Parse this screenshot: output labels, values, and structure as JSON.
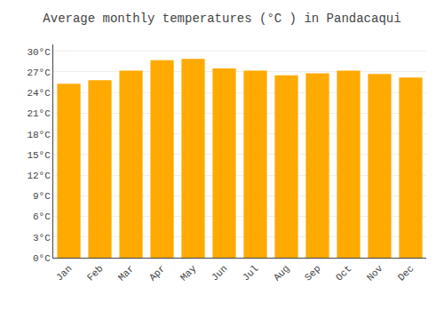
{
  "chart_data": {
    "type": "bar",
    "title": "Average monthly temperatures (°C ) in Pandacaqui",
    "categories": [
      "Jan",
      "Feb",
      "Mar",
      "Apr",
      "May",
      "Jun",
      "Jul",
      "Aug",
      "Sep",
      "Oct",
      "Nov",
      "Dec"
    ],
    "values": [
      25.3,
      25.8,
      27.2,
      28.7,
      28.9,
      27.5,
      27.2,
      26.5,
      26.8,
      27.2,
      26.7,
      26.2
    ],
    "color": "#FFAA00",
    "ylim": [
      0,
      31
    ],
    "yticks": [
      {
        "value": 0,
        "label": "0°C"
      },
      {
        "value": 3,
        "label": "3°C"
      },
      {
        "value": 6,
        "label": "6°C"
      },
      {
        "value": 9,
        "label": "9°C"
      },
      {
        "value": 12,
        "label": "12°C"
      },
      {
        "value": 15,
        "label": "15°C"
      },
      {
        "value": 18,
        "label": "18°C"
      },
      {
        "value": 21,
        "label": "21°C"
      },
      {
        "value": 24,
        "label": "24°C"
      },
      {
        "value": 27,
        "label": "27°C"
      },
      {
        "value": 30,
        "label": "30°C"
      }
    ],
    "grid": true
  }
}
